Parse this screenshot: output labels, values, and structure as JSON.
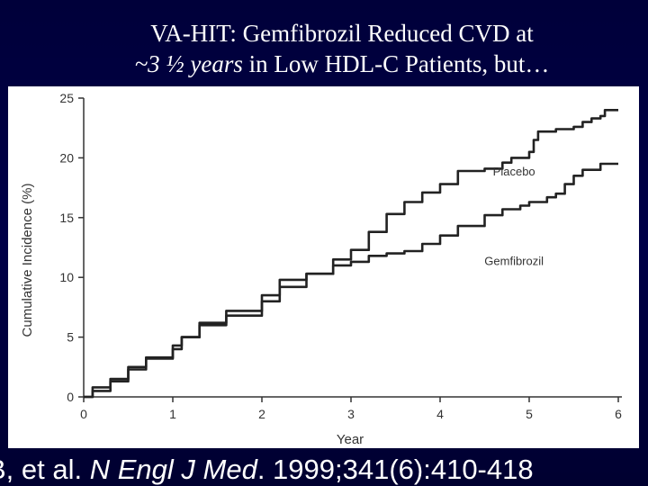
{
  "slide": {
    "title_line1": "VA-HIT: Gemfibrozil Reduced CVD at",
    "title_line2_italic": "~3 ½ years",
    "title_line2_rest": " in Low HDL-C Patients, but…",
    "citation_prefix": "B, et al. ",
    "citation_journal": "N Engl J Med",
    "citation_rest": ". 1999;341(6):410-418"
  },
  "chart_data": {
    "type": "line",
    "title": "",
    "xlabel": "Year",
    "ylabel": "Cumulative Incidence (%)",
    "xlim": [
      0,
      6
    ],
    "ylim": [
      0,
      25
    ],
    "xticks": [
      0,
      1,
      2,
      3,
      4,
      5,
      6
    ],
    "yticks": [
      0,
      5,
      10,
      15,
      20,
      25
    ],
    "grid": false,
    "legend": "inline labels",
    "series": [
      {
        "name": "Placebo",
        "color": "#222222",
        "points": [
          [
            0,
            0
          ],
          [
            0.1,
            0.5
          ],
          [
            0.3,
            1.3
          ],
          [
            0.5,
            2.3
          ],
          [
            0.7,
            3.2
          ],
          [
            1.0,
            4.0
          ],
          [
            1.1,
            5.0
          ],
          [
            1.3,
            6.0
          ],
          [
            1.6,
            6.8
          ],
          [
            2.0,
            8.0
          ],
          [
            2.2,
            9.2
          ],
          [
            2.5,
            10.3
          ],
          [
            2.8,
            11.5
          ],
          [
            3.0,
            12.3
          ],
          [
            3.2,
            13.8
          ],
          [
            3.4,
            15.3
          ],
          [
            3.6,
            16.3
          ],
          [
            3.8,
            17.1
          ],
          [
            4.0,
            17.8
          ],
          [
            4.2,
            18.9
          ],
          [
            4.5,
            19.1
          ],
          [
            4.7,
            19.6
          ],
          [
            4.8,
            20.0
          ],
          [
            5.0,
            20.5
          ],
          [
            5.05,
            21.5
          ],
          [
            5.1,
            22.2
          ],
          [
            5.3,
            22.4
          ],
          [
            5.5,
            22.6
          ],
          [
            5.6,
            23.0
          ],
          [
            5.7,
            23.3
          ],
          [
            5.8,
            23.5
          ],
          [
            5.85,
            24.0
          ],
          [
            6.0,
            24.0
          ]
        ]
      },
      {
        "name": "Gemfibrozil",
        "color": "#222222",
        "points": [
          [
            0,
            0
          ],
          [
            0.1,
            0.8
          ],
          [
            0.3,
            1.5
          ],
          [
            0.5,
            2.5
          ],
          [
            0.7,
            3.3
          ],
          [
            1.0,
            4.3
          ],
          [
            1.1,
            5.0
          ],
          [
            1.3,
            6.2
          ],
          [
            1.6,
            7.2
          ],
          [
            2.0,
            8.5
          ],
          [
            2.2,
            9.8
          ],
          [
            2.5,
            10.3
          ],
          [
            2.8,
            11.0
          ],
          [
            3.0,
            11.3
          ],
          [
            3.2,
            11.8
          ],
          [
            3.4,
            12.0
          ],
          [
            3.6,
            12.2
          ],
          [
            3.8,
            12.8
          ],
          [
            4.0,
            13.5
          ],
          [
            4.2,
            14.3
          ],
          [
            4.5,
            15.2
          ],
          [
            4.7,
            15.7
          ],
          [
            4.9,
            16.0
          ],
          [
            5.0,
            16.3
          ],
          [
            5.2,
            16.7
          ],
          [
            5.3,
            17.0
          ],
          [
            5.4,
            17.8
          ],
          [
            5.5,
            18.5
          ],
          [
            5.6,
            19.0
          ],
          [
            5.8,
            19.5
          ],
          [
            6.0,
            19.5
          ]
        ]
      }
    ]
  }
}
